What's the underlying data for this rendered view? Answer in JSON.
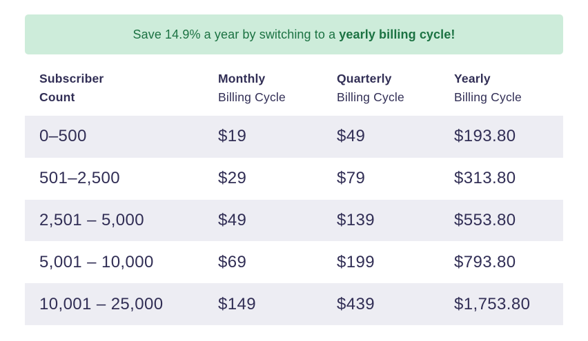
{
  "colors": {
    "banner_bg": "#cdecda",
    "banner_text": "#1b7242",
    "row_alt_bg": "#ededf3",
    "text_navy": "#312e55"
  },
  "banner": {
    "text_prefix": "Save 14.9% a year by switching to a ",
    "text_bold": "yearly billing cycle!"
  },
  "table": {
    "columns": [
      {
        "key": "subscriber-count",
        "line1": "Subscriber",
        "line2": "Count",
        "line2_bold": true
      },
      {
        "key": "monthly",
        "line1": "Monthly",
        "line2": "Billing Cycle",
        "line2_bold": false
      },
      {
        "key": "quarterly",
        "line1": "Quarterly",
        "line2": "Billing Cycle",
        "line2_bold": false
      },
      {
        "key": "yearly",
        "line1": "Yearly",
        "line2": "Billing Cycle",
        "line2_bold": false
      }
    ],
    "rows": [
      {
        "range": "0–500",
        "monthly": "$19",
        "quarterly": "$49",
        "yearly": "$193.80"
      },
      {
        "range": "501–2,500",
        "monthly": "$29",
        "quarterly": "$79",
        "yearly": "$313.80"
      },
      {
        "range": "2,501 – 5,000",
        "monthly": "$49",
        "quarterly": "$139",
        "yearly": "$553.80"
      },
      {
        "range": "5,001 – 10,000",
        "monthly": "$69",
        "quarterly": "$199",
        "yearly": "$793.80"
      },
      {
        "range": "10,001 – 25,000",
        "monthly": "$149",
        "quarterly": "$439",
        "yearly": "$1,753.80"
      }
    ]
  }
}
